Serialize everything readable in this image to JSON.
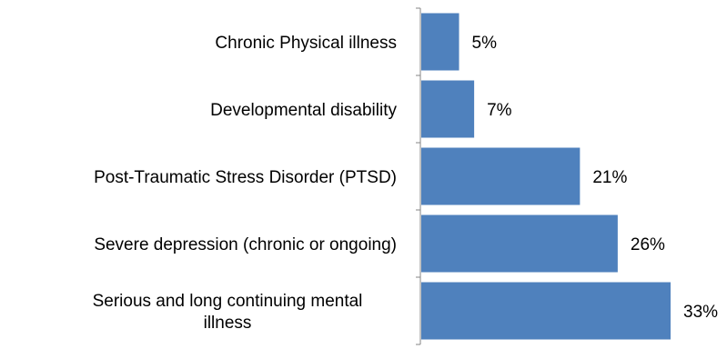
{
  "chart_data": {
    "type": "bar",
    "orientation": "horizontal",
    "categories": [
      [
        "Chronic Physical illness"
      ],
      [
        "Developmental disability"
      ],
      [
        "Post-Traumatic Stress Disorder (PTSD)"
      ],
      [
        "Severe depression (chronic or ongoing)"
      ],
      [
        "Serious and long continuing mental",
        "illness"
      ]
    ],
    "values": [
      5,
      7,
      21,
      26,
      33
    ],
    "data_labels": [
      "5%",
      "7%",
      "21%",
      "26%",
      "33%"
    ],
    "value_unit": "%",
    "xlim": [
      0,
      35
    ],
    "grid": false,
    "legend": "none",
    "bar_color": "#4f81bd",
    "axis_color": "#868686"
  }
}
